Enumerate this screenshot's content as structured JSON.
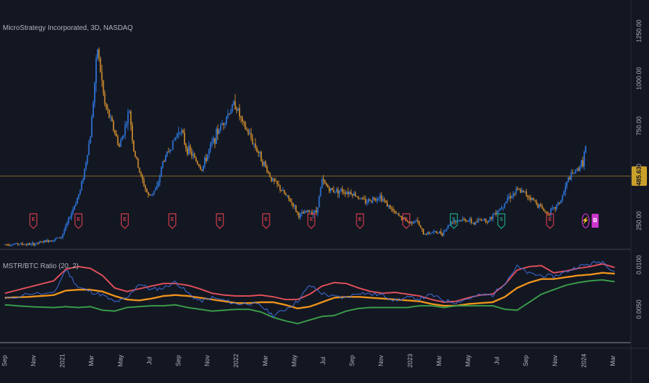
{
  "main_title": "MicroStrategy Incorporated, 3D, NASDAQ",
  "indicator_title": "MSTR/BTC Ratio (20, 2)",
  "colors": {
    "background": "#131722",
    "up": "#2e73d8",
    "down": "#c8882c",
    "upper_band": "#e0505a",
    "basis": "#f0951c",
    "lower_band": "#3a9e4a",
    "ratio": "#3e6fe0",
    "marker_earn": "#d43d4c",
    "marker_split": "#1fa88a",
    "marker_dividend": "#cc33cc",
    "last_price_bg": "#c9a02a",
    "grid": "#2a2e39"
  },
  "chart_data": [
    {
      "type": "candlestick",
      "title": "MicroStrategy Incorporated, 3D, NASDAQ",
      "ylim": [
        0,
        1300
      ],
      "y_ticks": [
        "1250.00",
        "1000.00",
        "750.00",
        "500.00",
        "250.00"
      ],
      "y_tick_values": [
        1250,
        1000,
        750,
        500,
        250
      ],
      "last_price": 485.63,
      "last_price_label": "485.63",
      "x_ticks": [
        "Sep",
        "Nov",
        "2021",
        "Mar",
        "May",
        "Jul",
        "Sep",
        "Nov",
        "2022",
        "Mar",
        "May",
        "Jul",
        "Sep",
        "Nov",
        "2023",
        "Mar",
        "May",
        "Jul",
        "Sep",
        "Nov",
        "2024",
        "Mar"
      ],
      "x_tick_months": [
        0,
        2,
        4,
        6,
        8,
        10,
        12,
        14,
        16,
        18,
        20,
        22,
        24,
        26,
        28,
        30,
        32,
        34,
        36,
        38,
        40,
        42
      ],
      "price_path_months": [
        0,
        1,
        2,
        2.8,
        3.5,
        4,
        4.4,
        4.9,
        5.3,
        5.6,
        6,
        6.5,
        7,
        7.5,
        8,
        8.3,
        8.7,
        9,
        9.5,
        10,
        10.6,
        11,
        11.7,
        12.2,
        12.6,
        13,
        13.7,
        14.3,
        14.8,
        15.3,
        16,
        16.5,
        17,
        17.8,
        18.5,
        19,
        19.5,
        20,
        20.4,
        21,
        21.6,
        22,
        22.6,
        23.2,
        24,
        25,
        26,
        27,
        28,
        28.5,
        29,
        29.6,
        30.3,
        31,
        32,
        32.5,
        33,
        33.5,
        34,
        34.3,
        34.8,
        35.5,
        36,
        36.5,
        37,
        37.5,
        38,
        38.5,
        39,
        39.5,
        40,
        40.2
      ],
      "price_path_values": [
        125,
        128,
        125,
        140,
        152,
        165,
        235,
        330,
        410,
        520,
        700,
        1160,
        860,
        760,
        640,
        720,
        830,
        620,
        480,
        380,
        420,
        560,
        660,
        740,
        640,
        600,
        520,
        640,
        720,
        790,
        870,
        760,
        700,
        580,
        470,
        430,
        380,
        335,
        275,
        300,
        295,
        460,
        410,
        410,
        400,
        350,
        380,
        290,
        240,
        255,
        180,
        190,
        185,
        250,
        255,
        235,
        260,
        250,
        300,
        315,
        370,
        410,
        395,
        365,
        330,
        290,
        310,
        360,
        470,
        510,
        560,
        640
      ],
      "volatility": 28,
      "event_markers": [
        {
          "month": 2.4,
          "type": "earnings",
          "label": "E"
        },
        {
          "month": 6.2,
          "type": "earnings",
          "label": "E"
        },
        {
          "month": 10.1,
          "type": "earnings",
          "label": "E"
        },
        {
          "month": 14.1,
          "type": "earnings",
          "label": "E"
        },
        {
          "month": 18.1,
          "type": "earnings",
          "label": "E"
        },
        {
          "month": 22.0,
          "type": "earnings",
          "label": "E"
        },
        {
          "month": 25.8,
          "type": "earnings",
          "label": "E"
        },
        {
          "month": 29.9,
          "type": "earnings",
          "label": "E"
        },
        {
          "month": 33.8,
          "type": "earnings",
          "label": "E"
        },
        {
          "month": 37.8,
          "type": "split",
          "label": "S"
        },
        {
          "month": 41.8,
          "type": "split",
          "label": "S"
        },
        {
          "month": 45.9,
          "type": "earnings",
          "label": "E"
        },
        {
          "month": 48.9,
          "type": "flash",
          "label": "⚡"
        },
        {
          "month": 49.7,
          "type": "dividend",
          "label": "B"
        }
      ]
    },
    {
      "type": "line",
      "title": "MSTR/BTC Ratio (20, 2)",
      "y_ticks": [
        "0.0100",
        "0.0050"
      ],
      "y_tick_values": [
        0.01,
        0.005
      ],
      "ylim": [
        0.0022,
        0.0108
      ],
      "x_months": [
        0,
        2,
        4,
        5,
        6,
        7,
        8,
        9,
        10,
        11,
        12,
        13,
        14,
        15,
        16,
        17,
        18,
        19,
        20,
        21,
        22,
        23,
        24,
        25,
        26,
        27,
        28,
        29,
        30,
        31,
        32,
        33,
        34,
        35,
        36,
        37,
        38,
        39,
        40,
        41,
        42,
        43,
        44,
        45,
        46,
        47,
        48,
        49,
        50
      ],
      "series": [
        {
          "name": "upper",
          "values": [
            0.0068,
            0.0075,
            0.0082,
            0.0095,
            0.0098,
            0.0096,
            0.0088,
            0.0074,
            0.007,
            0.0073,
            0.0076,
            0.0079,
            0.0079,
            0.0077,
            0.0073,
            0.0068,
            0.0066,
            0.0065,
            0.0065,
            0.0066,
            0.0064,
            0.0061,
            0.0061,
            0.0067,
            0.0076,
            0.008,
            0.0079,
            0.0074,
            0.007,
            0.0068,
            0.0069,
            0.0067,
            0.0065,
            0.0061,
            0.0058,
            0.0059,
            0.0063,
            0.0066,
            0.0067,
            0.0078,
            0.0094,
            0.0098,
            0.0099,
            0.0091,
            0.0093,
            0.0096,
            0.0098,
            0.0101,
            0.0097
          ]
        },
        {
          "name": "basis",
          "values": [
            0.0063,
            0.0064,
            0.0066,
            0.0071,
            0.0072,
            0.0072,
            0.007,
            0.0065,
            0.0061,
            0.006,
            0.0062,
            0.0065,
            0.0066,
            0.0065,
            0.0063,
            0.0061,
            0.0059,
            0.0057,
            0.0057,
            0.0058,
            0.0058,
            0.0055,
            0.0051,
            0.0053,
            0.0058,
            0.0063,
            0.0064,
            0.0064,
            0.0063,
            0.0062,
            0.0061,
            0.006,
            0.0059,
            0.0056,
            0.0054,
            0.0054,
            0.0056,
            0.0057,
            0.0058,
            0.0064,
            0.0074,
            0.008,
            0.0084,
            0.0084,
            0.0086,
            0.0088,
            0.0089,
            0.0091,
            0.009
          ]
        },
        {
          "name": "lower",
          "values": [
            0.0055,
            0.0053,
            0.0052,
            0.0053,
            0.0052,
            0.0053,
            0.0049,
            0.0048,
            0.0052,
            0.0053,
            0.0054,
            0.0054,
            0.0055,
            0.0052,
            0.005,
            0.0048,
            0.0049,
            0.005,
            0.005,
            0.0047,
            0.0041,
            0.0037,
            0.0034,
            0.0038,
            0.0042,
            0.0043,
            0.0048,
            0.0051,
            0.0052,
            0.0052,
            0.0052,
            0.0052,
            0.0054,
            0.0054,
            0.0052,
            0.0054,
            0.0054,
            0.0054,
            0.0054,
            0.005,
            0.0049,
            0.0058,
            0.0067,
            0.0072,
            0.0077,
            0.008,
            0.0082,
            0.0083,
            0.0081
          ]
        },
        {
          "name": "ratio",
          "values": [
            0.0061,
            0.0068,
            0.0067,
            0.0095,
            0.0075,
            0.007,
            0.0066,
            0.0058,
            0.0062,
            0.0079,
            0.0072,
            0.0074,
            0.0081,
            0.0068,
            0.0059,
            0.0063,
            0.006,
            0.0056,
            0.0057,
            0.0054,
            0.0043,
            0.005,
            0.0059,
            0.0077,
            0.0068,
            0.0064,
            0.0063,
            0.0069,
            0.0067,
            0.0066,
            0.006,
            0.0063,
            0.0062,
            0.0066,
            0.006,
            0.0058,
            0.0062,
            0.0066,
            0.0066,
            0.008,
            0.0098,
            0.009,
            0.0088,
            0.0087,
            0.0092,
            0.0098,
            0.0101,
            0.0104,
            0.0092
          ]
        }
      ]
    }
  ]
}
